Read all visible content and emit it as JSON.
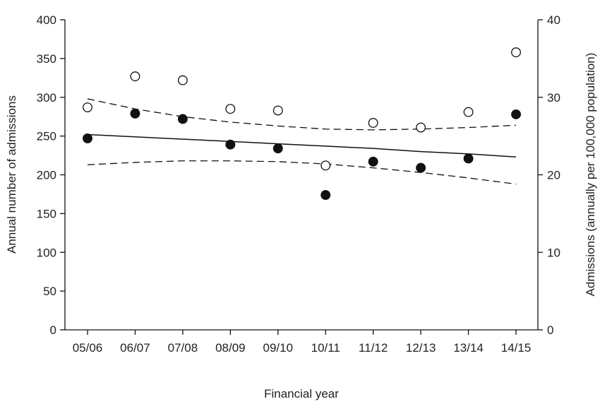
{
  "chart_data": {
    "type": "scatter",
    "title": "",
    "xlabel": "Financial year",
    "ylabel_left": "Annual number of admissions",
    "ylabel_right": "Admissions (annually per 100,000 population)",
    "categories": [
      "05/06",
      "06/07",
      "07/08",
      "08/09",
      "09/10",
      "10/11",
      "11/12",
      "12/13",
      "13/14",
      "14/15"
    ],
    "ylim_left": [
      0,
      400
    ],
    "yticks_left": [
      0,
      50,
      100,
      150,
      200,
      250,
      300,
      350,
      400
    ],
    "ylim_right": [
      0,
      40
    ],
    "yticks_right": [
      0,
      10,
      20,
      30,
      40
    ],
    "grid": false,
    "series": [
      {
        "style": "filled-circle",
        "axis": "left",
        "values": [
          247,
          279,
          272,
          239,
          234,
          174,
          217,
          209,
          221,
          278
        ]
      },
      {
        "style": "open-circle",
        "axis": "right",
        "values": [
          28.7,
          32.7,
          32.2,
          28.5,
          28.3,
          21.2,
          26.7,
          26.1,
          28.1,
          35.8
        ]
      }
    ],
    "fit_line": {
      "style": "solid",
      "axis": "left",
      "values": [
        252,
        249,
        246,
        243,
        240,
        237,
        234,
        230,
        227,
        223
      ]
    },
    "confidence_bands": [
      {
        "style": "dashed",
        "axis": "left",
        "values": [
          298,
          285,
          275,
          268,
          263,
          259,
          258,
          259,
          261,
          264
        ]
      },
      {
        "style": "dashed",
        "axis": "left",
        "values": [
          213,
          216,
          218,
          218,
          217,
          214,
          209,
          203,
          196,
          188
        ]
      }
    ]
  }
}
